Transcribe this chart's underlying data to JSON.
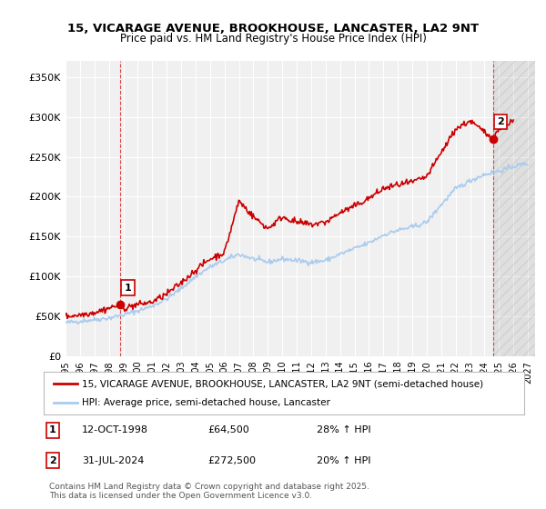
{
  "title_line1": "15, VICARAGE AVENUE, BROOKHOUSE, LANCASTER, LA2 9NT",
  "title_line2": "Price paid vs. HM Land Registry's House Price Index (HPI)",
  "ylabel_ticks": [
    "£0",
    "£50K",
    "£100K",
    "£150K",
    "£200K",
    "£250K",
    "£300K",
    "£350K"
  ],
  "ytick_vals": [
    0,
    50000,
    100000,
    150000,
    200000,
    250000,
    300000,
    350000
  ],
  "ylim": [
    0,
    370000
  ],
  "xlim_start": 1995.0,
  "xlim_end": 2027.5,
  "background_color": "#f0f0f0",
  "plot_bg_color": "#f0f0f0",
  "red_line_color": "#cc0000",
  "blue_line_color": "#aaccee",
  "marker_color": "#cc0000",
  "sale1_x": 1998.78,
  "sale1_y": 64500,
  "sale1_label": "1",
  "sale2_x": 2024.58,
  "sale2_y": 272500,
  "sale2_label": "2",
  "legend_line1": "15, VICARAGE AVENUE, BROOKHOUSE, LANCASTER, LA2 9NT (semi-detached house)",
  "legend_line2": "HPI: Average price, semi-detached house, Lancaster",
  "ann1_date": "12-OCT-1998",
  "ann1_price": "£64,500",
  "ann1_hpi": "28% ↑ HPI",
  "ann2_date": "31-JUL-2024",
  "ann2_price": "£272,500",
  "ann2_hpi": "20% ↑ HPI",
  "footer": "Contains HM Land Registry data © Crown copyright and database right 2025.\nThis data is licensed under the Open Government Licence v3.0.",
  "hpi_years": [
    1995,
    1996,
    1997,
    1998,
    1999,
    2000,
    2001,
    2002,
    2003,
    2004,
    2005,
    2006,
    2007,
    2008,
    2009,
    2010,
    2011,
    2012,
    2013,
    2014,
    2015,
    2016,
    2017,
    2018,
    2019,
    2020,
    2021,
    2022,
    2023,
    2024,
    2025,
    2026,
    2027
  ],
  "hpi_vals": [
    42000,
    44000,
    46000,
    48000,
    52000,
    57000,
    63000,
    72000,
    85000,
    100000,
    112000,
    120000,
    128000,
    122000,
    118000,
    122000,
    120000,
    118000,
    120000,
    128000,
    135000,
    142000,
    152000,
    158000,
    162000,
    168000,
    190000,
    210000,
    220000,
    228000,
    232000,
    238000,
    242000
  ],
  "red_years": [
    1995,
    1996,
    1997,
    1998.78,
    1999,
    2000,
    2001,
    2002,
    2003,
    2004,
    2005,
    2006,
    2007,
    2008,
    2009,
    2010,
    2011,
    2012,
    2013,
    2014,
    2015,
    2016,
    2017,
    2018,
    2019,
    2020,
    2021,
    2022,
    2023,
    2024.58,
    2025,
    2026
  ],
  "red_vals": [
    50000,
    52000,
    55000,
    64500,
    60000,
    65000,
    68000,
    78000,
    92000,
    108000,
    122000,
    130000,
    195000,
    175000,
    160000,
    175000,
    168000,
    165000,
    168000,
    180000,
    188000,
    198000,
    210000,
    215000,
    218000,
    225000,
    255000,
    285000,
    295000,
    272500,
    285000,
    295000
  ]
}
